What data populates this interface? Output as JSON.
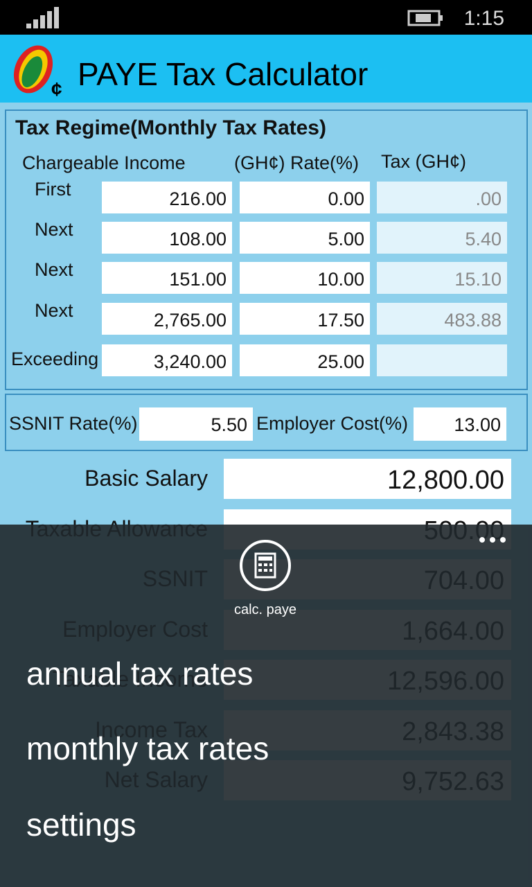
{
  "status": {
    "time": "1:15"
  },
  "header": {
    "title": "PAYE Tax Calculator"
  },
  "regime": {
    "title": "Tax Regime(Monthly Tax Rates)",
    "headers": [
      "Chargeable Income",
      "(GH¢) Rate(%)",
      "Tax (GH¢)"
    ],
    "rows": [
      {
        "label": "First",
        "income": "216.00",
        "rate": "0.00",
        "tax": ".00"
      },
      {
        "label": "Next",
        "income": "108.00",
        "rate": "5.00",
        "tax": "5.40"
      },
      {
        "label": "Next",
        "income": "151.00",
        "rate": "10.00",
        "tax": "15.10"
      },
      {
        "label": "Next",
        "income": "2,765.00",
        "rate": "17.50",
        "tax": "483.88"
      },
      {
        "label": "Exceeding",
        "income": "3,240.00",
        "rate": "25.00"
      }
    ]
  },
  "ssnit": {
    "label": "SSNIT Rate(%)",
    "value": "5.50",
    "employer_label": "Employer Cost(%)",
    "employer_value": "13.00"
  },
  "fields": [
    {
      "label": "Basic Salary",
      "value": "12,800.00"
    },
    {
      "label": "Taxable Allowance",
      "value": "500.00"
    },
    {
      "label": "SSNIT",
      "value": "704.00"
    },
    {
      "label": "Employer Cost",
      "value": "1,664.00"
    },
    {
      "label": "Taxable Income",
      "value": "12,596.00"
    },
    {
      "label": "Income Tax",
      "value": "2,843.38"
    },
    {
      "label": "Net Salary",
      "value": "9,752.63"
    }
  ],
  "app_bar": {
    "button": "calc. paye",
    "menu": [
      "annual tax rates",
      "monthly tax rates",
      "settings"
    ]
  }
}
